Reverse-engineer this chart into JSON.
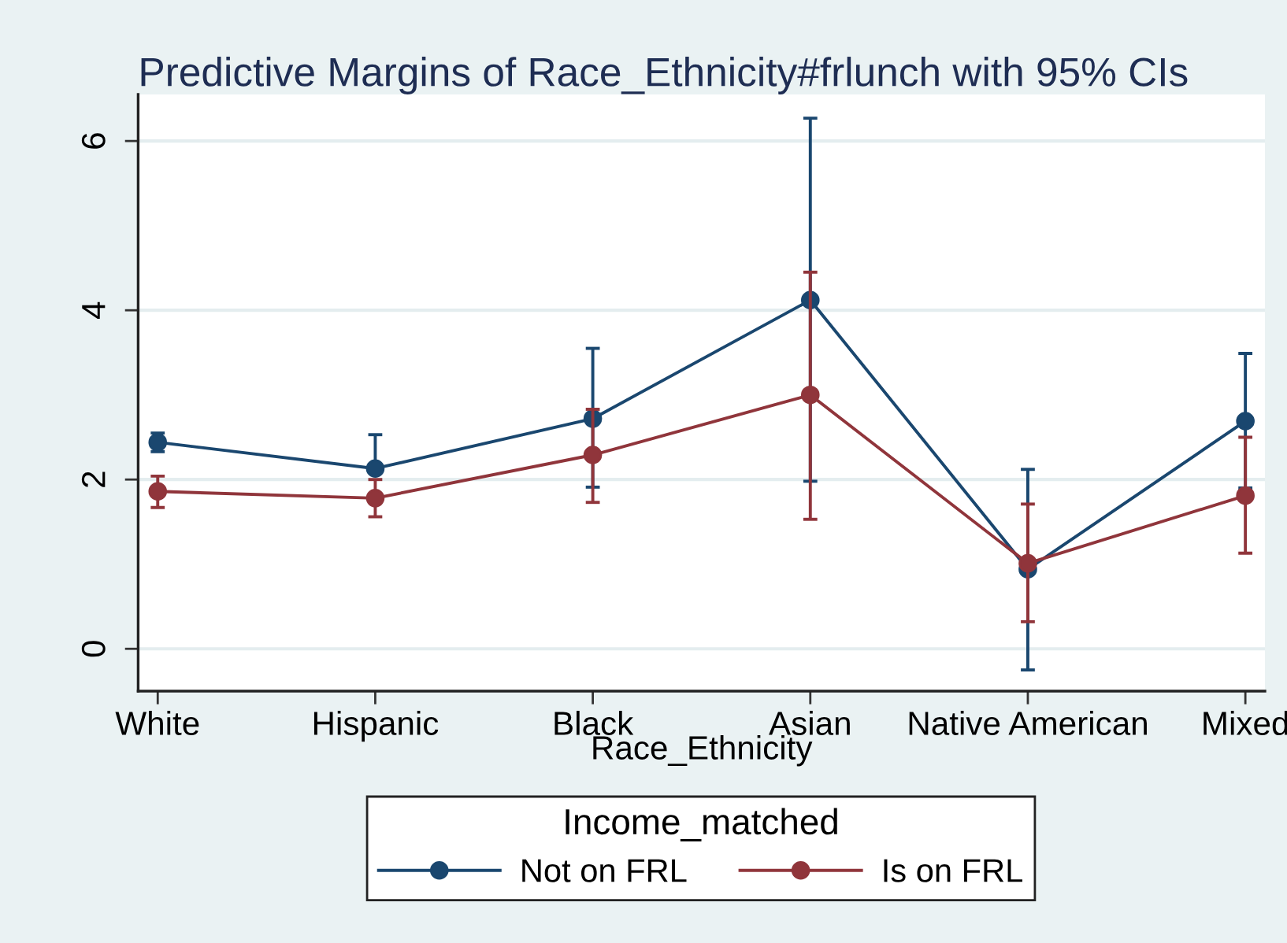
{
  "chart_data": {
    "type": "line",
    "title": "Predictive Margins of Race_Ethnicity#frlunch with 95% CIs",
    "xlabel": "Race_Ethnicity",
    "legend_title": "Income_matched",
    "categories": [
      "White",
      "Hispanic",
      "Black",
      "Asian",
      "Native American",
      "Mixed"
    ],
    "series": [
      {
        "name": "Not on FRL",
        "color": "#1a476f",
        "values": [
          2.44,
          2.13,
          2.72,
          4.12,
          0.94,
          2.69
        ],
        "errors": [
          [
            2.33,
            2.55
          ],
          [
            2.13,
            2.53
          ],
          [
            1.91,
            3.55
          ],
          [
            1.98,
            6.27
          ],
          [
            -0.25,
            2.12
          ],
          [
            1.9,
            3.49
          ]
        ]
      },
      {
        "name": "Is on FRL",
        "color": "#90353b",
        "values": [
          1.86,
          1.78,
          2.29,
          3.0,
          1.01,
          1.81
        ],
        "errors": [
          [
            1.67,
            2.04
          ],
          [
            1.56,
            2.0
          ],
          [
            1.73,
            2.83
          ],
          [
            1.53,
            4.45
          ],
          [
            0.32,
            1.71
          ],
          [
            1.13,
            2.5
          ]
        ]
      }
    ],
    "ylim": [
      -0.5,
      6.55
    ],
    "yticks": [
      0,
      2,
      4,
      6
    ],
    "grid": "y",
    "legend": "bottom",
    "marker": "circle",
    "line_style": "solid"
  }
}
